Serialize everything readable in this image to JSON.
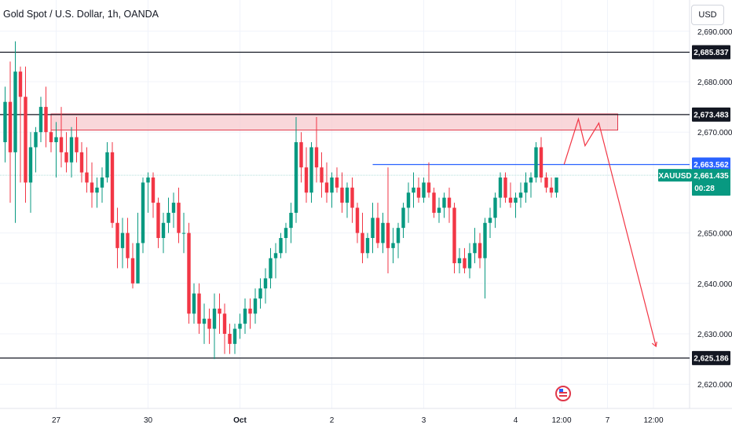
{
  "header": {
    "title": "Gold Spot / U.S. Dollar, 1h, OANDA",
    "currency": "USD"
  },
  "colors": {
    "up": "#089981",
    "down": "#f23645",
    "level_line": "#131722",
    "zone_fill": "#f7c9cd",
    "zone_border": "#e0374a",
    "blue_line": "#2962ff",
    "projection": "#f23645",
    "price_line": "#b2dfdb"
  },
  "chart_data": {
    "type": "candlestick",
    "symbol": "XAUUSD",
    "y_range": [
      2614,
      2692
    ],
    "y_ticks": [
      {
        "value": 2690,
        "label": "2,690.000"
      },
      {
        "value": 2680,
        "label": "2,680.000"
      },
      {
        "value": 2670,
        "label": "2,670.000"
      },
      {
        "value": 2650,
        "label": "2,650.000"
      },
      {
        "value": 2640,
        "label": "2,640.000"
      },
      {
        "value": 2630,
        "label": "2,630.000"
      },
      {
        "value": 2620,
        "label": "2,620.000"
      }
    ],
    "x_ticks": [
      {
        "index": 10,
        "label": "27",
        "bold": false
      },
      {
        "index": 28,
        "label": "30",
        "bold": false
      },
      {
        "index": 46,
        "label": "Oct",
        "bold": true
      },
      {
        "index": 64,
        "label": "2",
        "bold": false
      },
      {
        "index": 82,
        "label": "3",
        "bold": false
      },
      {
        "index": 100,
        "label": "4",
        "bold": false
      },
      {
        "index": 109,
        "label": "12:00",
        "bold": false
      },
      {
        "index": 118,
        "label": "7",
        "bold": false
      },
      {
        "index": 127,
        "label": "12:00",
        "bold": false
      }
    ],
    "price_levels": [
      {
        "value": 2685.837,
        "label": "2,685.837",
        "style": "dark"
      },
      {
        "value": 2673.483,
        "label": "2,673.483",
        "style": "dark"
      },
      {
        "value": 2663.562,
        "label": "2,663.562",
        "style": "blue"
      },
      {
        "value": 2625.186,
        "label": "2,625.186",
        "style": "dark"
      }
    ],
    "current_price": {
      "symbol": "XAUUSD",
      "value": 2661.435,
      "label": "2,661.435",
      "countdown": "00:28"
    },
    "resistance_zone": {
      "top": 2673.6,
      "bottom": 2670.4,
      "start_index": 9,
      "end_index": 120
    },
    "blue_level": {
      "value": 2663.562,
      "start_index": 72,
      "end_index": 132
    },
    "projection_path": [
      {
        "index": 109.5,
        "value": 2663.6
      },
      {
        "index": 112.3,
        "value": 2672.6
      },
      {
        "index": 113.6,
        "value": 2667.3
      },
      {
        "index": 116.3,
        "value": 2671.8
      },
      {
        "index": 127.5,
        "value": 2627.5
      }
    ],
    "ohlc": [
      [
        2668,
        2679,
        2664,
        2676
      ],
      [
        2676,
        2684,
        2656,
        2666
      ],
      [
        2666,
        2688,
        2652,
        2682
      ],
      [
        2682,
        2683,
        2660,
        2677
      ],
      [
        2677,
        2683,
        2656,
        2660
      ],
      [
        2660,
        2670,
        2654,
        2667
      ],
      [
        2667,
        2671,
        2662,
        2670
      ],
      [
        2670,
        2677,
        2668,
        2675
      ],
      [
        2675,
        2679,
        2667,
        2670
      ],
      [
        2670,
        2673,
        2666,
        2668
      ],
      [
        2668,
        2672,
        2661,
        2669
      ],
      [
        2669,
        2675,
        2663,
        2666
      ],
      [
        2666,
        2670,
        2662,
        2664
      ],
      [
        2664,
        2671,
        2661,
        2669
      ],
      [
        2669,
        2673,
        2664,
        2666
      ],
      [
        2666,
        2668,
        2660,
        2662
      ],
      [
        2662,
        2667,
        2658,
        2660
      ],
      [
        2660,
        2664,
        2655,
        2658
      ],
      [
        2658,
        2661,
        2655,
        2659
      ],
      [
        2659,
        2663,
        2656,
        2661
      ],
      [
        2661,
        2668,
        2660,
        2666
      ],
      [
        2666,
        2668,
        2651,
        2652
      ],
      [
        2652,
        2655,
        2643,
        2647
      ],
      [
        2647,
        2653,
        2643,
        2650
      ],
      [
        2650,
        2653,
        2643,
        2645
      ],
      [
        2645,
        2648,
        2639,
        2640
      ],
      [
        2640,
        2654,
        2640,
        2648
      ],
      [
        2648,
        2661,
        2646,
        2660
      ],
      [
        2660,
        2662,
        2654,
        2661
      ],
      [
        2661,
        2662,
        2653,
        2656
      ],
      [
        2656,
        2657,
        2647,
        2649
      ],
      [
        2649,
        2654,
        2646,
        2652
      ],
      [
        2652,
        2657,
        2650,
        2654
      ],
      [
        2654,
        2658,
        2651,
        2656
      ],
      [
        2656,
        2659,
        2648,
        2650
      ],
      [
        2650,
        2654,
        2646,
        2650
      ],
      [
        2650,
        2652,
        2632,
        2634
      ],
      [
        2634,
        2640,
        2632,
        2638
      ],
      [
        2638,
        2640,
        2630,
        2632
      ],
      [
        2632,
        2636,
        2628,
        2633
      ],
      [
        2633,
        2635,
        2628,
        2631
      ],
      [
        2631,
        2638,
        2625,
        2635
      ],
      [
        2635,
        2638,
        2630,
        2634
      ],
      [
        2634,
        2636,
        2626,
        2630
      ],
      [
        2630,
        2632,
        2626,
        2628
      ],
      [
        2628,
        2632,
        2626,
        2631
      ],
      [
        2631,
        2634,
        2629,
        2632
      ],
      [
        2632,
        2637,
        2630,
        2635
      ],
      [
        2635,
        2637,
        2631,
        2634
      ],
      [
        2634,
        2639,
        2632,
        2637
      ],
      [
        2637,
        2641,
        2635,
        2639
      ],
      [
        2639,
        2643,
        2636,
        2641
      ],
      [
        2641,
        2647,
        2639,
        2645
      ],
      [
        2645,
        2648,
        2641,
        2646
      ],
      [
        2646,
        2650,
        2645,
        2649
      ],
      [
        2649,
        2652,
        2646,
        2651
      ],
      [
        2651,
        2656,
        2648,
        2654
      ],
      [
        2654,
        2673,
        2652,
        2668
      ],
      [
        2668,
        2670,
        2660,
        2663
      ],
      [
        2663,
        2667,
        2656,
        2658
      ],
      [
        2658,
        2668,
        2656,
        2667
      ],
      [
        2667,
        2673,
        2660,
        2663
      ],
      [
        2663,
        2666,
        2657,
        2660
      ],
      [
        2660,
        2664,
        2656,
        2658
      ],
      [
        2658,
        2662,
        2655,
        2661
      ],
      [
        2661,
        2663,
        2658,
        2659
      ],
      [
        2659,
        2662,
        2654,
        2656
      ],
      [
        2656,
        2660,
        2653,
        2659
      ],
      [
        2659,
        2661,
        2652,
        2655
      ],
      [
        2655,
        2656,
        2648,
        2650
      ],
      [
        2650,
        2654,
        2644,
        2646
      ],
      [
        2646,
        2650,
        2645,
        2649
      ],
      [
        2649,
        2656,
        2646,
        2653
      ],
      [
        2653,
        2656,
        2647,
        2648
      ],
      [
        2648,
        2654,
        2646,
        2652
      ],
      [
        2652,
        2663,
        2642,
        2647
      ],
      [
        2647,
        2651,
        2644,
        2648
      ],
      [
        2648,
        2652,
        2645,
        2651
      ],
      [
        2651,
        2656,
        2649,
        2655
      ],
      [
        2655,
        2660,
        2652,
        2658
      ],
      [
        2658,
        2662,
        2655,
        2659
      ],
      [
        2659,
        2661,
        2656,
        2657
      ],
      [
        2657,
        2661,
        2656,
        2660
      ],
      [
        2660,
        2664,
        2657,
        2658
      ],
      [
        2658,
        2659,
        2653,
        2654
      ],
      [
        2654,
        2657,
        2652,
        2655
      ],
      [
        2655,
        2658,
        2653,
        2657
      ],
      [
        2657,
        2659,
        2652,
        2655
      ],
      [
        2655,
        2656,
        2642,
        2644
      ],
      [
        2644,
        2647,
        2642,
        2645
      ],
      [
        2645,
        2647,
        2642,
        2643
      ],
      [
        2643,
        2648,
        2641,
        2646
      ],
      [
        2646,
        2651,
        2644,
        2648
      ],
      [
        2648,
        2650,
        2643,
        2645
      ],
      [
        2645,
        2653,
        2637,
        2652
      ],
      [
        2652,
        2655,
        2649,
        2653
      ],
      [
        2653,
        2658,
        2651,
        2657
      ],
      [
        2657,
        2662,
        2655,
        2661
      ],
      [
        2661,
        2662,
        2656,
        2657
      ],
      [
        2657,
        2660,
        2655,
        2656
      ],
      [
        2656,
        2658,
        2653,
        2657
      ],
      [
        2657,
        2660,
        2655,
        2658
      ],
      [
        2658,
        2662,
        2656,
        2660
      ],
      [
        2660,
        2662,
        2657,
        2661
      ],
      [
        2661,
        2668,
        2660,
        2667
      ],
      [
        2667,
        2669,
        2660,
        2661
      ],
      [
        2661,
        2662,
        2658,
        2659
      ],
      [
        2659,
        2661,
        2657,
        2658
      ],
      [
        2658,
        2661,
        2657,
        2661
      ]
    ]
  }
}
